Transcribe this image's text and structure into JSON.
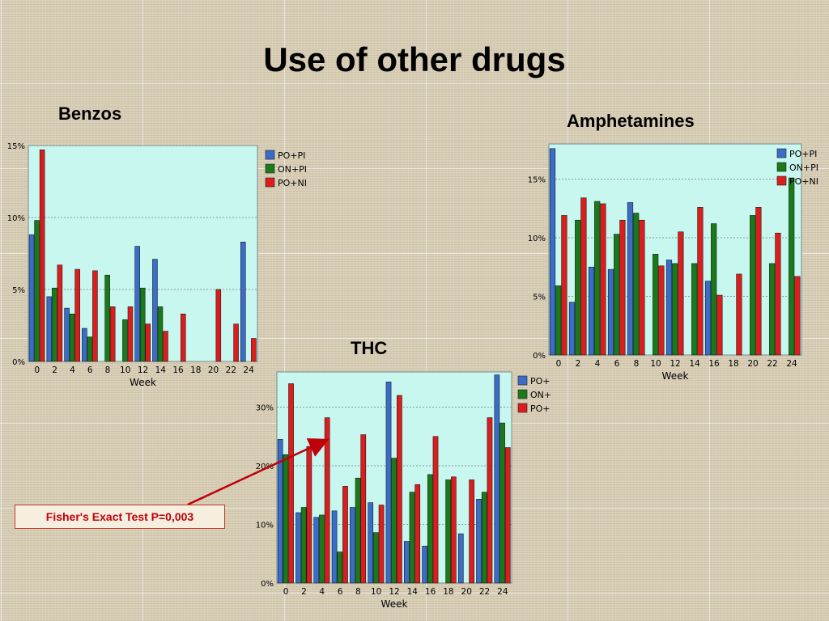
{
  "slide": {
    "title": "Use of other drugs",
    "callout": "Fisher's Exact Test   P=0,003"
  },
  "legend_colors": {
    "PO+PI": "#3a6cc9",
    "ON+PI": "#1a7a1a",
    "PO+NI": "#dd1c1c"
  },
  "chart_data": [
    {
      "name": "Benzos",
      "type": "bar",
      "title": "Benzos",
      "xlabel": "Week",
      "ylabel": "",
      "ylim": [
        0,
        15
      ],
      "yticks": [
        "0%",
        "5%",
        "10%",
        "15%"
      ],
      "categories": [
        "0",
        "2",
        "4",
        "6",
        "8",
        "10",
        "12",
        "14",
        "16",
        "18",
        "20",
        "22",
        "24"
      ],
      "series": [
        {
          "name": "PO+PI",
          "values": [
            8.8,
            4.5,
            3.7,
            2.3,
            0,
            0,
            8.0,
            7.1,
            0,
            0,
            0,
            0,
            8.3
          ]
        },
        {
          "name": "ON+PI",
          "values": [
            9.8,
            5.1,
            3.3,
            1.7,
            6.0,
            2.9,
            5.1,
            3.8,
            0,
            0,
            0,
            0,
            0
          ]
        },
        {
          "name": "PO+NI",
          "values": [
            14.7,
            6.7,
            6.4,
            6.3,
            3.8,
            3.8,
            2.6,
            2.1,
            3.3,
            0,
            5.0,
            2.6,
            1.6
          ]
        }
      ],
      "legend": "top-right",
      "grid": true
    },
    {
      "name": "Amphetamines",
      "type": "bar",
      "title": "Amphetamines",
      "xlabel": "Week",
      "ylabel": "",
      "ylim": [
        0,
        18
      ],
      "yticks": [
        "0%",
        "5%",
        "10%",
        "15%"
      ],
      "categories": [
        "0",
        "2",
        "4",
        "6",
        "8",
        "10",
        "12",
        "14",
        "16",
        "18",
        "20",
        "22",
        "24"
      ],
      "series": [
        {
          "name": "PO+PI",
          "values": [
            17.6,
            4.5,
            7.5,
            7.3,
            13.0,
            0,
            8.1,
            0,
            6.3,
            0,
            0,
            0,
            0
          ]
        },
        {
          "name": "ON+PI",
          "values": [
            5.9,
            11.5,
            13.1,
            10.3,
            12.1,
            8.6,
            7.8,
            7.8,
            11.2,
            0,
            11.9,
            7.8,
            15.1
          ]
        },
        {
          "name": "PO+NI",
          "values": [
            11.9,
            13.4,
            12.9,
            11.5,
            11.5,
            7.6,
            10.5,
            12.6,
            5.1,
            6.9,
            12.6,
            10.4,
            6.7
          ]
        }
      ],
      "legend": "top-right",
      "grid": true
    },
    {
      "name": "THC",
      "type": "bar",
      "title": "THC",
      "xlabel": "Week",
      "ylabel": "",
      "ylim": [
        0,
        36
      ],
      "yticks": [
        "0%",
        "10%",
        "20%",
        "30%"
      ],
      "categories": [
        "0",
        "2",
        "4",
        "6",
        "8",
        "10",
        "12",
        "14",
        "16",
        "18",
        "20",
        "22",
        "24"
      ],
      "series": [
        {
          "name": "PO+PI",
          "values": [
            24.5,
            12.0,
            11.2,
            12.3,
            12.9,
            13.7,
            34.3,
            7.1,
            6.3,
            0,
            8.4,
            14.3,
            35.5
          ]
        },
        {
          "name": "ON+PI",
          "values": [
            21.9,
            12.9,
            11.6,
            5.3,
            17.9,
            8.6,
            21.3,
            15.5,
            18.5,
            17.6,
            0,
            15.5,
            27.3
          ]
        },
        {
          "name": "PO+NI",
          "values": [
            34.0,
            23.3,
            28.2,
            16.5,
            25.3,
            13.3,
            32.0,
            16.8,
            25.0,
            18.1,
            17.6,
            28.2,
            23.1
          ]
        }
      ],
      "legend": "right",
      "grid": true
    }
  ]
}
